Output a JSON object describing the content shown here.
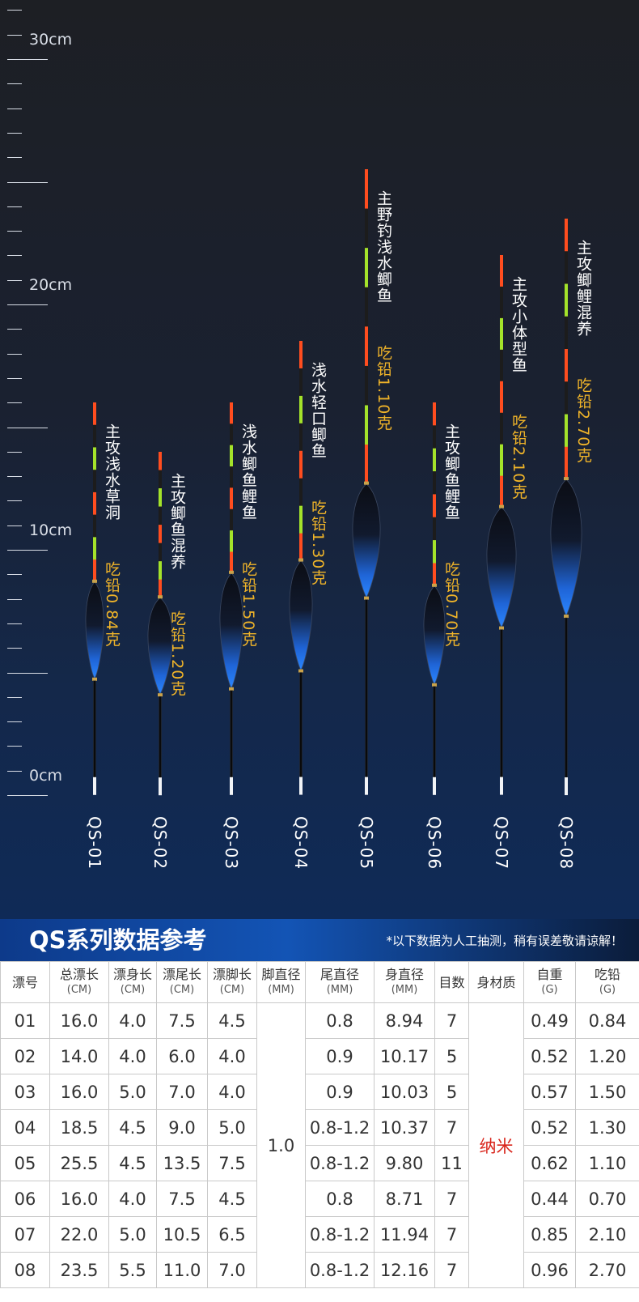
{
  "ruler": {
    "labels": [
      {
        "text": "30cm",
        "value": 30
      },
      {
        "text": "20cm",
        "value": 20
      },
      {
        "text": "10cm",
        "value": 10
      },
      {
        "text": "0cm",
        "value": 0
      }
    ]
  },
  "floats": [
    {
      "code": "QS-01",
      "name": "主攻浅水草洞",
      "lead": "吃铅0.84克",
      "total_cm": 16.0
    },
    {
      "code": "QS-02",
      "name": "主攻鲫鱼混养",
      "lead": "吃铅1.20克",
      "total_cm": 14.0
    },
    {
      "code": "QS-03",
      "name": "浅水鲫鱼鲤鱼",
      "lead": "吃铅1.50克",
      "total_cm": 16.0
    },
    {
      "code": "QS-04",
      "name": "浅水轻口鲫鱼",
      "lead": "吃铅1.30克",
      "total_cm": 18.5
    },
    {
      "code": "QS-05",
      "name": "主野钓浅水鲫鱼",
      "lead": "吃铅1.10克",
      "total_cm": 25.5
    },
    {
      "code": "QS-06",
      "name": "主攻鲫鱼鲤鱼",
      "lead": "吃铅0.70克",
      "total_cm": 16.0
    },
    {
      "code": "QS-07",
      "name": "主攻小体型鱼",
      "lead": "吃铅2.10克",
      "total_cm": 22.0
    },
    {
      "code": "QS-08",
      "name": "主攻鲫鲤混养",
      "lead": "吃铅2.70克",
      "total_cm": 23.5
    }
  ],
  "banner": {
    "title": "QS系列数据参考",
    "note": "*以下数据为人工抽测，稍有误差敬请谅解！"
  },
  "table": {
    "headers": [
      {
        "main": "漂号",
        "sub": ""
      },
      {
        "main": "总漂长",
        "sub": "(CM)"
      },
      {
        "main": "漂身长",
        "sub": "(CM)"
      },
      {
        "main": "漂尾长",
        "sub": "(CM)"
      },
      {
        "main": "漂脚长",
        "sub": "(CM)"
      },
      {
        "main": "脚直径",
        "sub": "(MM)"
      },
      {
        "main": "尾直径",
        "sub": "(MM)"
      },
      {
        "main": "身直径",
        "sub": "(MM)"
      },
      {
        "main": "目数",
        "sub": ""
      },
      {
        "main": "身材质",
        "sub": ""
      },
      {
        "main": "自重",
        "sub": "(G)"
      },
      {
        "main": "吃铅",
        "sub": "(G)"
      }
    ],
    "foot_diameter": "1.0",
    "material": "纳米",
    "rows": [
      [
        "01",
        "16.0",
        "4.0",
        "7.5",
        "4.5",
        "0.8",
        "8.94",
        "7",
        "0.49",
        "0.84"
      ],
      [
        "02",
        "14.0",
        "4.0",
        "6.0",
        "4.0",
        "0.9",
        "10.17",
        "5",
        "0.52",
        "1.20"
      ],
      [
        "03",
        "16.0",
        "5.0",
        "7.0",
        "4.0",
        "0.9",
        "10.03",
        "5",
        "0.57",
        "1.50"
      ],
      [
        "04",
        "18.5",
        "4.5",
        "9.0",
        "5.0",
        "0.8-1.2",
        "10.37",
        "7",
        "0.52",
        "1.30"
      ],
      [
        "05",
        "25.5",
        "4.5",
        "13.5",
        "7.5",
        "0.8-1.2",
        "9.80",
        "11",
        "0.62",
        "1.10"
      ],
      [
        "06",
        "16.0",
        "4.0",
        "7.5",
        "4.5",
        "0.8",
        "8.71",
        "7",
        "0.44",
        "0.70"
      ],
      [
        "07",
        "22.0",
        "5.0",
        "10.5",
        "6.5",
        "0.8-1.2",
        "11.94",
        "7",
        "0.85",
        "2.10"
      ],
      [
        "08",
        "23.5",
        "5.5",
        "11.0",
        "7.0",
        "0.8-1.2",
        "12.16",
        "7",
        "0.96",
        "2.70"
      ]
    ]
  }
}
